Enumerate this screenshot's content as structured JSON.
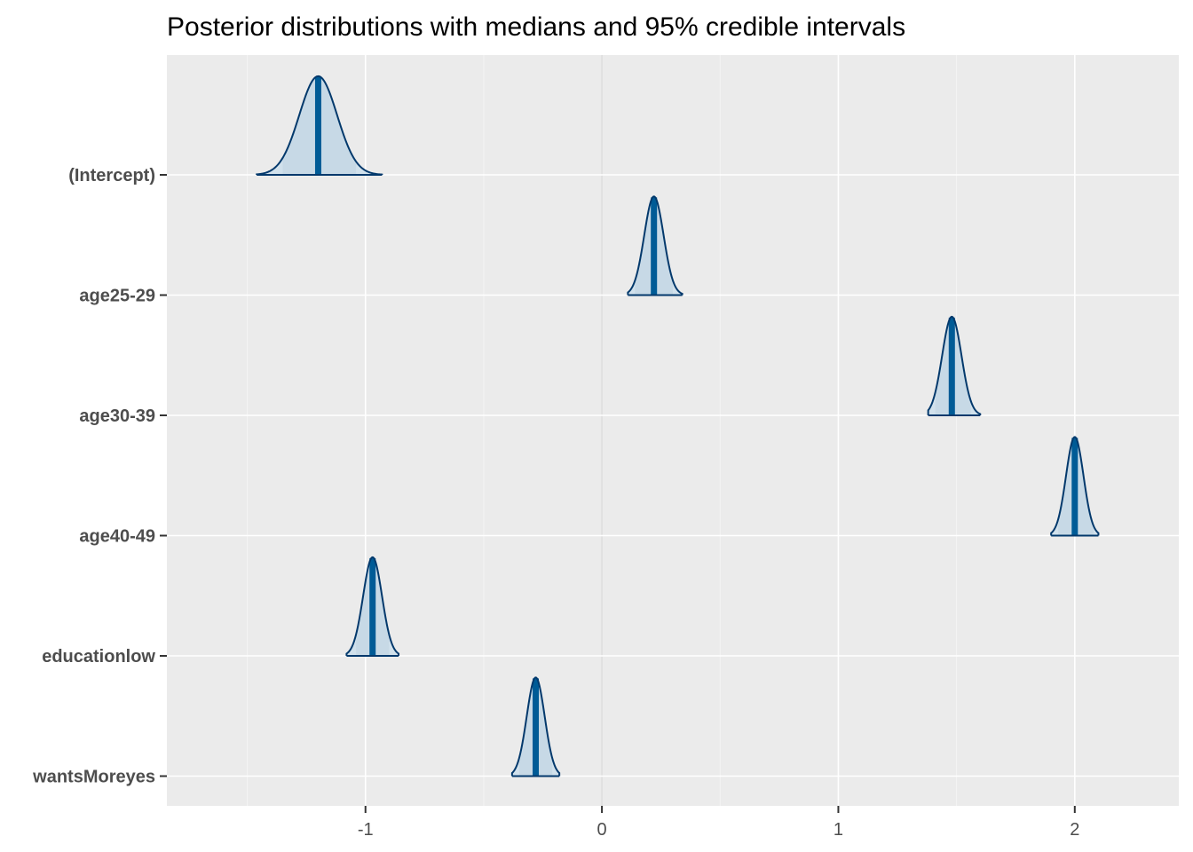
{
  "chart_data": {
    "type": "area",
    "title": "Posterior distributions with medians and 95% credible intervals",
    "xlabel": "",
    "ylabel": "",
    "xlim": [
      -1.84,
      2.44
    ],
    "x_ticks": [
      "-1",
      "0",
      "1",
      "2"
    ],
    "x_tick_values": [
      -1,
      0,
      1,
      2
    ],
    "grid": true,
    "background": "#ebebeb",
    "colors": {
      "outline": "#03396c",
      "fill": "#d1e1ec",
      "interval": "#011f4b",
      "median": "#005b96",
      "grid_major": "#ffffff",
      "zero_line": "#dedede"
    },
    "categories": [
      "(Intercept)",
      "age25-29",
      "age30-39",
      "age40-49",
      "educationlow",
      "wantsMoreyes"
    ],
    "series": [
      {
        "parameter": "(Intercept)",
        "median": -1.2,
        "ci95": [
          -1.35,
          -1.04
        ],
        "sd": 0.08,
        "range": [
          -1.46,
          -0.93
        ]
      },
      {
        "parameter": "age25-29",
        "median": 0.22,
        "ci95": [
          0.14,
          0.3
        ],
        "sd": 0.041,
        "range": [
          0.11,
          0.34
        ]
      },
      {
        "parameter": "age30-39",
        "median": 1.48,
        "ci95": [
          1.41,
          1.56
        ],
        "sd": 0.041,
        "range": [
          1.38,
          1.6
        ]
      },
      {
        "parameter": "age40-49",
        "median": 2.0,
        "ci95": [
          1.93,
          2.08
        ],
        "sd": 0.037,
        "range": [
          1.9,
          2.1
        ]
      },
      {
        "parameter": "educationlow",
        "median": -0.97,
        "ci95": [
          -1.04,
          -0.9
        ],
        "sd": 0.04,
        "range": [
          -1.08,
          -0.86
        ]
      },
      {
        "parameter": "wantsMoreyes",
        "median": -0.28,
        "ci95": [
          -0.35,
          -0.21
        ],
        "sd": 0.038,
        "range": [
          -0.38,
          -0.18
        ]
      }
    ]
  }
}
